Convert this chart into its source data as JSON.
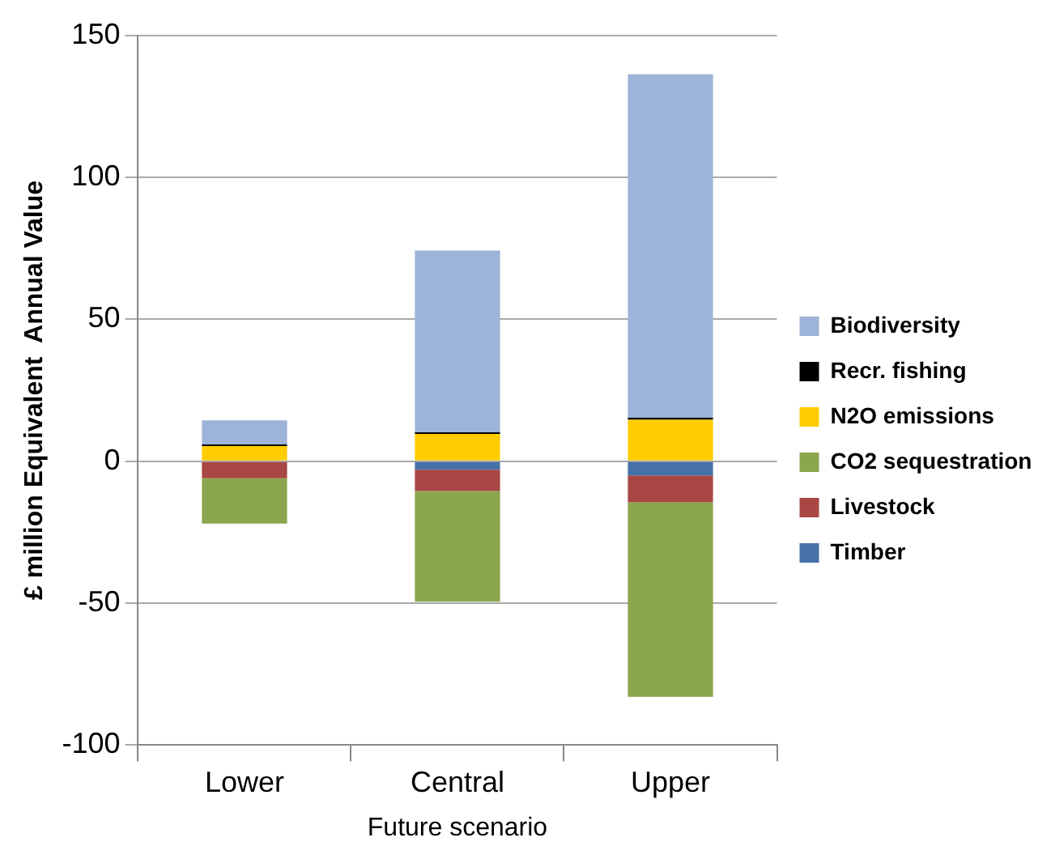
{
  "chart_data": {
    "type": "bar",
    "stacked": true,
    "ylabel": "£ million Equivalent  Annual Value",
    "xlabel": "Future scenario",
    "categories": [
      "Lower",
      "Central",
      "Upper"
    ],
    "series": [
      {
        "name": "Timber",
        "color": "#4571a7",
        "values": [
          0,
          -3,
          -5
        ]
      },
      {
        "name": "Livestock",
        "color": "#a84744",
        "values": [
          -6,
          -7.5,
          -9.5
        ]
      },
      {
        "name": "CO2 sequestration",
        "color": "#8aa64e",
        "values": [
          -16,
          -39,
          -68.5
        ]
      },
      {
        "name": "N2O emissions",
        "color": "#ffcc00",
        "values": [
          5.3,
          9.6,
          14.6
        ]
      },
      {
        "name": "Recr. fishing",
        "color": "#000000",
        "values": [
          0.6,
          0.6,
          0.7
        ]
      },
      {
        "name": "Biodiversity",
        "color": "#9db3d7",
        "values": [
          8.5,
          64,
          121
        ]
      }
    ],
    "ylim": [
      -100,
      150
    ],
    "yticks": [
      -100,
      -50,
      0,
      50,
      100,
      150
    ],
    "grid": "y",
    "legend": "right"
  }
}
